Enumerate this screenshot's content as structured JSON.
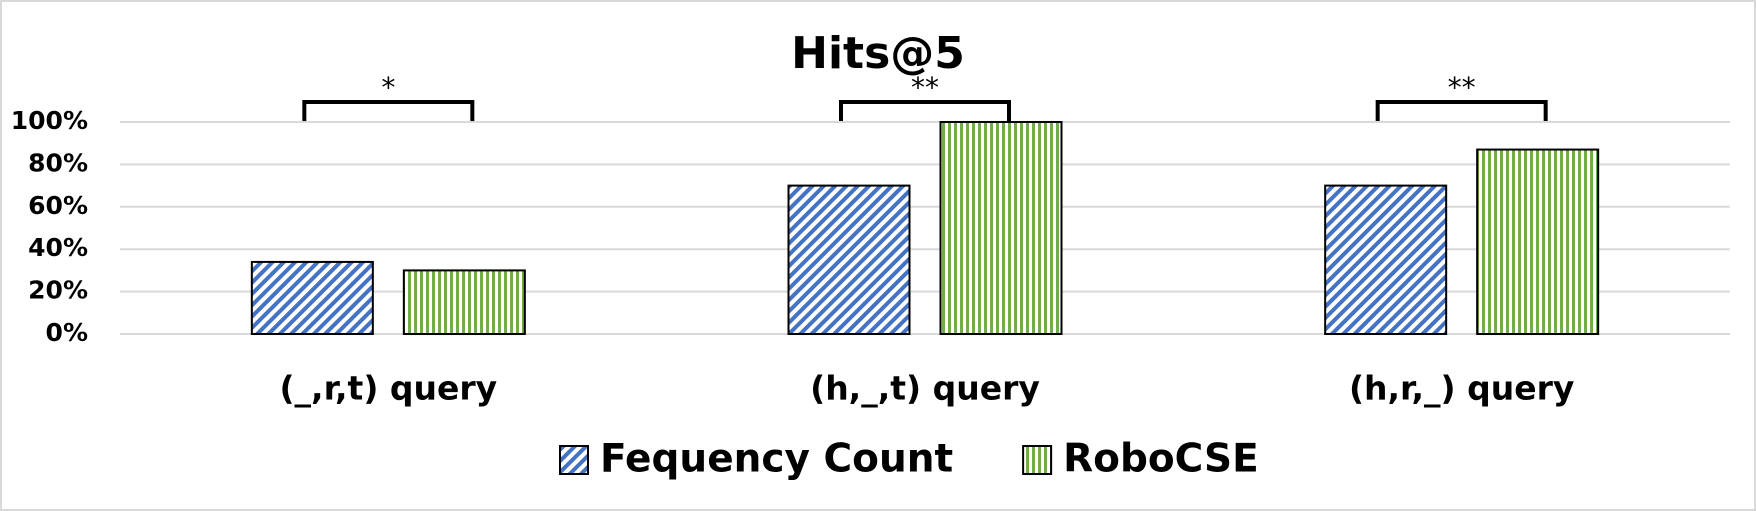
{
  "chart_data": {
    "type": "bar",
    "title": "Hits@5",
    "categories": [
      "(_,r,t) query",
      "(h,_,t) query",
      "(h,r,_) query"
    ],
    "series": [
      {
        "name": "Fequency Count",
        "color": "#4472c4",
        "values": [
          34,
          70,
          70
        ]
      },
      {
        "name": "RoboCSE",
        "color": "#70ad47",
        "values": [
          30,
          100,
          87
        ]
      }
    ],
    "annotations": [
      "*",
      "**",
      "**"
    ],
    "ylim": [
      0,
      100
    ],
    "yticks": [
      {
        "value": 0,
        "label": "0%"
      },
      {
        "value": 20,
        "label": "20%"
      },
      {
        "value": 40,
        "label": "40%"
      },
      {
        "value": 60,
        "label": "60%"
      },
      {
        "value": 80,
        "label": "80%"
      },
      {
        "value": 100,
        "label": "100%"
      }
    ],
    "grid": true,
    "legend": "bottom"
  }
}
